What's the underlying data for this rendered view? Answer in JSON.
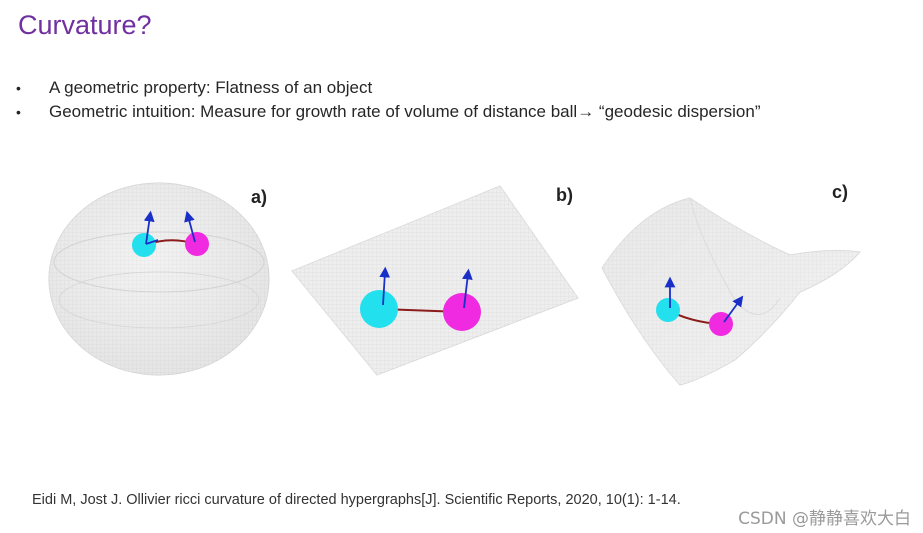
{
  "slide": {
    "title": "Curvature?",
    "bullets": [
      "A geometric property: Flatness of an object",
      "Geometric intuition: Measure for growth rate of volume of distance ball→ “geodesic dispersion”"
    ],
    "bullet_glyph": "•"
  },
  "figure": {
    "panels": [
      {
        "label": "a)",
        "surface": "sphere"
      },
      {
        "label": "b)",
        "surface": "plane"
      },
      {
        "label": "c)",
        "surface": "saddle"
      }
    ],
    "colors": {
      "ball_1": "#22e0ee",
      "ball_2": "#f02ae0",
      "geodesic": "#8b1a1a",
      "vector": "#1a2fc8",
      "surface": "#e6e6e6"
    }
  },
  "reference": "Eidi M, Jost J. Ollivier ricci curvature of directed hypergraphs[J]. Scientific Reports, 2020, 10(1): 1-14.",
  "watermark": "CSDN @静静喜欢大白"
}
